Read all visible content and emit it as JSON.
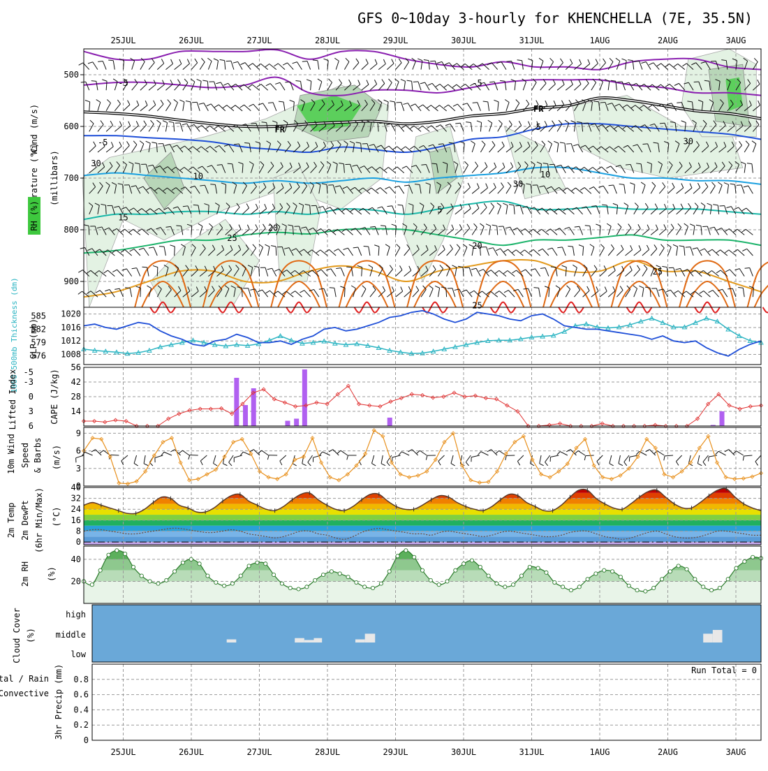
{
  "title": "GFS 0~10day 3-hourly for KHENCHELLA (7E, 35.5N)",
  "dates": [
    "25JUL",
    "26JUL",
    "27JUL",
    "28JUL",
    "29JUL",
    "30JUL",
    "31JUL",
    "1AUG",
    "2AUG",
    "3AUG"
  ],
  "colors": {
    "purple": "#8a1fb0",
    "black": "#000000",
    "blue": "#1f4fd8",
    "lightblue": "#1aa0e0",
    "teal": "#18b7a8",
    "green": "#1bb36a",
    "orange": "#e39a1c",
    "darkorange": "#e06a14",
    "red": "#e02020",
    "rhgreen": "#5ccf5c",
    "cyan": "#2ab4c2",
    "cape": "#b060f0",
    "wind": "#e8901c",
    "cloud": "#6aa8d8",
    "li": "#e03030"
  },
  "chart_data": [
    {
      "id": "upper_air",
      "type": "contour",
      "yaxis_label": "(millibars)",
      "legend": [
        "Wind (m/s)",
        "Temperature (°C)",
        "RH (%)"
      ],
      "ylim": [
        450,
        950
      ],
      "yticks": [
        500,
        600,
        700,
        800,
        900
      ],
      "contour_labels": [
        {
          "text": "-5",
          "day": 0.0,
          "p": 515,
          "color": "purple"
        },
        {
          "text": "-5",
          "day": 5.2,
          "p": 515,
          "color": "purple"
        },
        {
          "text": "FR",
          "day": 2.3,
          "p": 605,
          "color": "black"
        },
        {
          "text": "FR",
          "day": 6.1,
          "p": 565,
          "color": "black"
        },
        {
          "text": "-5",
          "day": -0.3,
          "p": 630,
          "color": "blue"
        },
        {
          "text": "5",
          "day": 6.1,
          "p": 600,
          "color": "blue"
        },
        {
          "text": "30",
          "day": -0.4,
          "p": 670,
          "color": "gray"
        },
        {
          "text": "30",
          "day": 8.3,
          "p": 628,
          "color": "gray"
        },
        {
          "text": "30",
          "day": 5.8,
          "p": 710,
          "color": "gray"
        },
        {
          "text": "10",
          "day": 1.1,
          "p": 695,
          "color": "lightblue"
        },
        {
          "text": "10",
          "day": 6.2,
          "p": 692,
          "color": "lightblue"
        },
        {
          "text": "15",
          "day": 0.0,
          "p": 775,
          "color": "teal"
        },
        {
          "text": "5",
          "day": 4.65,
          "p": 760,
          "color": "teal"
        },
        {
          "text": "20",
          "day": 2.2,
          "p": 795,
          "color": "green"
        },
        {
          "text": "20",
          "day": 5.2,
          "p": 830,
          "color": "green"
        },
        {
          "text": "25",
          "day": 1.6,
          "p": 815,
          "color": "orange"
        },
        {
          "text": "25",
          "day": 7.85,
          "p": 880,
          "color": "orange"
        },
        {
          "text": "25",
          "day": 5.2,
          "p": 945,
          "color": "orange"
        }
      ],
      "isotherms": [
        {
          "name": "T -10",
          "color": "purple",
          "p": [
            455,
            470,
            470,
            455,
            455,
            455,
            452,
            470,
            455,
            455,
            470,
            480,
            485,
            475,
            485,
            485,
            490,
            475,
            470,
            470,
            485,
            490
          ]
        },
        {
          "name": "T -5",
          "color": "purple",
          "p": [
            520,
            515,
            515,
            520,
            525,
            520,
            505,
            535,
            540,
            530,
            530,
            535,
            525,
            515,
            510,
            510,
            510,
            520,
            525,
            535,
            535,
            540
          ]
        },
        {
          "name": "T 0 (FR)",
          "color": "black",
          "p": [
            572,
            575,
            580,
            588,
            595,
            600,
            600,
            595,
            592,
            590,
            595,
            590,
            580,
            575,
            565,
            560,
            545,
            550,
            560,
            570,
            575,
            585
          ]
        },
        {
          "name": "T 5",
          "color": "blue",
          "p": [
            618,
            618,
            622,
            625,
            630,
            640,
            645,
            650,
            640,
            645,
            650,
            640,
            625,
            620,
            605,
            595,
            595,
            600,
            605,
            610,
            615,
            625
          ]
        },
        {
          "name": "T 10",
          "color": "lightblue",
          "p": [
            695,
            690,
            695,
            700,
            705,
            710,
            705,
            710,
            705,
            700,
            708,
            700,
            695,
            690,
            680,
            680,
            690,
            700,
            700,
            705,
            705,
            712
          ]
        },
        {
          "name": "T 15",
          "color": "teal",
          "p": [
            780,
            770,
            770,
            765,
            765,
            770,
            765,
            770,
            760,
            762,
            770,
            760,
            750,
            745,
            760,
            760,
            755,
            760,
            760,
            760,
            765,
            770
          ]
        },
        {
          "name": "T 20",
          "color": "green",
          "p": [
            845,
            840,
            830,
            820,
            820,
            810,
            805,
            808,
            800,
            798,
            800,
            810,
            820,
            830,
            820,
            820,
            815,
            810,
            820,
            820,
            820,
            830
          ]
        },
        {
          "name": "T 25",
          "color": "orange",
          "p": [
            930,
            920,
            900,
            880,
            880,
            900,
            900,
            880,
            870,
            880,
            900,
            880,
            870,
            860,
            860,
            880,
            880,
            860,
            880,
            880,
            900,
            920
          ]
        }
      ]
    },
    {
      "id": "thickness_slp",
      "type": "line",
      "series": [
        {
          "name": "1000-500mb Thickness (dm)",
          "color": "cyan",
          "ylim": [
            574,
            587
          ],
          "yticks": [
            576,
            579,
            582,
            585
          ],
          "values": [
            577.5,
            577.2,
            577.0,
            576.8,
            576.5,
            576.7,
            577.2,
            578.0,
            578.5,
            579.0,
            579.5,
            579.0,
            578.5,
            578.2,
            578.5,
            578.3,
            578.7,
            579.5,
            580.5,
            579.5,
            578.8,
            579.0,
            579.3,
            578.8,
            578.5,
            578.7,
            578.3,
            577.8,
            577.2,
            576.8,
            576.5,
            576.6,
            577.0,
            577.5,
            578.0,
            578.5,
            579.0,
            579.4,
            579.5,
            579.5,
            579.8,
            580.2,
            580.4,
            580.6,
            581.5,
            582.8,
            583.2,
            582.5,
            582.3,
            582.5,
            583.0,
            583.8,
            584.5,
            583.5,
            582.5,
            582.5,
            583.5,
            584.5,
            583.8,
            582.0,
            580.5,
            579.4,
            579.0
          ]
        },
        {
          "name": "SLP (mb)",
          "color": "blue",
          "ylim": [
            1005,
            1022
          ],
          "yticks": [
            1008,
            1012,
            1016,
            1020
          ],
          "values": [
            1016.5,
            1017.0,
            1016.0,
            1015.5,
            1016.5,
            1017.5,
            1017.0,
            1015.0,
            1013.5,
            1012.5,
            1011.0,
            1010.5,
            1012.0,
            1012.5,
            1014.0,
            1013.0,
            1011.5,
            1011.5,
            1012.0,
            1011.0,
            1012.5,
            1013.5,
            1015.5,
            1016.0,
            1015.0,
            1015.5,
            1016.5,
            1017.5,
            1019.0,
            1019.5,
            1020.5,
            1021.0,
            1020.0,
            1018.5,
            1017.5,
            1018.5,
            1020.5,
            1020.0,
            1019.5,
            1018.5,
            1018.0,
            1019.5,
            1020.0,
            1018.5,
            1016.5,
            1016.0,
            1015.5,
            1015.5,
            1015.0,
            1014.5,
            1014.0,
            1013.5,
            1012.5,
            1013.5,
            1012.0,
            1011.5,
            1012.0,
            1010.0,
            1008.5,
            1007.5,
            1009.5,
            1011.0,
            1012.0
          ]
        }
      ]
    },
    {
      "id": "li_cape",
      "type": "line+bar",
      "series": [
        {
          "name": "Lifted Index",
          "color": "li",
          "ylim": [
            6,
            -6
          ],
          "yticks": [
            -5,
            -3,
            0,
            3,
            6
          ],
          "values": [
            5.0,
            5.0,
            5.2,
            4.8,
            5.0,
            6,
            6,
            6,
            4.5,
            3.5,
            2.8,
            2.5,
            2.5,
            2.4,
            3.5,
            1.5,
            -0.8,
            -1.5,
            0.5,
            1.2,
            2.0,
            1.8,
            1.2,
            1.5,
            -0.5,
            -2.2,
            1.5,
            1.8,
            2.0,
            1.0,
            0.3,
            -0.5,
            -0.3,
            0.2,
            0.0,
            -0.8,
            0.0,
            -0.2,
            0.3,
            0.5,
            1.8,
            3.0,
            6,
            6,
            5.8,
            5.5,
            6,
            6,
            6,
            5.5,
            6,
            6,
            6,
            6,
            5.8,
            6,
            6,
            6,
            4.5,
            1.5,
            -0.5,
            1.8,
            2.5,
            2.0,
            1.8
          ]
        },
        {
          "name": "CAPE (J/kg)",
          "color": "cape",
          "ylim": [
            0,
            56
          ],
          "yticks": [
            14,
            28,
            42,
            56
          ],
          "bars": [
            {
              "day": 1.66,
              "value": 46
            },
            {
              "day": 1.79,
              "value": 20
            },
            {
              "day": 1.91,
              "value": 36
            },
            {
              "day": 2.41,
              "value": 5
            },
            {
              "day": 2.54,
              "value": 7
            },
            {
              "day": 2.66,
              "value": 54
            },
            {
              "day": 3.91,
              "value": 8
            },
            {
              "day": 8.66,
              "value": 1
            },
            {
              "day": 8.79,
              "value": 14
            }
          ]
        }
      ],
      "reference_line": 0
    },
    {
      "id": "wind10m",
      "type": "line",
      "ylabel": "10m Wind Speed & Barbs (m/s)",
      "ylim": [
        0,
        10
      ],
      "yticks": [
        0,
        3,
        6,
        9
      ],
      "values": [
        6.0,
        8.2,
        8.0,
        5.0,
        0.5,
        0.4,
        0.8,
        2.5,
        5.2,
        7.5,
        8.2,
        4.0,
        1.0,
        1.2,
        2.0,
        2.8,
        5.0,
        7.5,
        8.0,
        5.5,
        2.5,
        1.5,
        1.2,
        2.0,
        4.5,
        5.0,
        8.2,
        4.0,
        1.5,
        1.0,
        2.0,
        3.5,
        5.5,
        9.5,
        8.5,
        4.0,
        2.0,
        1.5,
        1.8,
        2.5,
        4.5,
        7.5,
        9.0,
        3.5,
        1.0,
        0.6,
        0.7,
        2.5,
        5.5,
        7.5,
        8.5,
        4.5,
        2.0,
        1.5,
        2.5,
        3.8,
        6.5,
        8.0,
        3.5,
        1.5,
        1.2,
        1.8,
        3.0,
        5.0,
        8.0,
        6.5,
        2.0,
        1.5,
        2.5,
        4.0,
        6.5,
        8.5,
        4.0,
        1.5,
        1.2,
        1.3,
        1.6,
        2.2
      ]
    },
    {
      "id": "temp2m",
      "type": "area",
      "ylabel": "2m Temp / 2m DewPt (6hr Min/Max) (°C)",
      "ylim": [
        -2,
        40
      ],
      "yticks": [
        0,
        8,
        16,
        24,
        32,
        40
      ],
      "temperature": [
        27,
        29,
        27,
        25,
        23,
        21,
        21,
        24,
        29,
        33,
        32,
        27,
        25,
        22,
        22,
        25,
        30,
        34,
        35,
        30,
        27,
        24,
        23,
        26,
        31,
        35,
        36,
        31,
        27,
        24,
        23,
        26,
        31,
        35,
        35,
        30,
        26,
        24,
        24,
        27,
        31,
        34,
        33,
        29,
        26,
        24,
        23,
        26,
        31,
        35,
        34,
        29,
        26,
        23,
        23,
        27,
        33,
        38,
        38,
        32,
        28,
        25,
        24,
        28,
        33,
        37,
        38,
        33,
        28,
        25,
        25,
        29,
        34,
        38,
        39,
        33,
        28,
        25,
        23
      ],
      "dewpoint": [
        8,
        9,
        9,
        8,
        7,
        6,
        6,
        7,
        8,
        9,
        10,
        10,
        9,
        8,
        7,
        7,
        8,
        9,
        8,
        6,
        5,
        4,
        3,
        4,
        6,
        8,
        8,
        6,
        5,
        3,
        2,
        4,
        7,
        9,
        10,
        9,
        8,
        7,
        6,
        6,
        5,
        7,
        8,
        7,
        6,
        5,
        4,
        5,
        7,
        8,
        7,
        6,
        5,
        4,
        4,
        5,
        7,
        8,
        8,
        6,
        4,
        3,
        2,
        3,
        5,
        7,
        8,
        6,
        4,
        3,
        3,
        4,
        6,
        8,
        8,
        7,
        6,
        5,
        5
      ]
    },
    {
      "id": "rh2m",
      "type": "area",
      "ylabel": "2m RH (%)",
      "ylim": [
        0,
        52
      ],
      "yticks": [
        20,
        40
      ],
      "values": [
        20,
        17,
        30,
        44,
        48,
        45,
        33,
        25,
        20,
        18,
        21,
        29,
        37,
        40,
        36,
        25,
        19,
        16,
        18,
        25,
        34,
        37,
        36,
        26,
        18,
        14,
        13,
        15,
        21,
        26,
        29,
        27,
        24,
        19,
        15,
        14,
        18,
        29,
        43,
        48,
        42,
        30,
        21,
        17,
        20,
        30,
        36,
        39,
        33,
        25,
        18,
        15,
        17,
        25,
        33,
        32,
        28,
        19,
        15,
        12,
        15,
        22,
        27,
        30,
        29,
        24,
        16,
        12,
        11,
        14,
        22,
        29,
        34,
        31,
        22,
        15,
        12,
        14,
        22,
        32,
        38,
        42,
        41
      ]
    },
    {
      "id": "cloud",
      "type": "heatmap",
      "ylabel": "Cloud Cover (%)",
      "rows": [
        "high",
        "middle",
        "low"
      ],
      "clear_blocks": [
        {
          "row": "middle",
          "start": 1.52,
          "end": 1.66,
          "level": 0.25
        },
        {
          "row": "middle",
          "start": 2.52,
          "end": 2.66,
          "level": 0.35
        },
        {
          "row": "middle",
          "start": 2.66,
          "end": 2.8,
          "level": 0.2
        },
        {
          "row": "middle",
          "start": 2.8,
          "end": 2.92,
          "level": 0.35
        },
        {
          "row": "middle",
          "start": 3.41,
          "end": 3.55,
          "level": 0.25
        },
        {
          "row": "middle",
          "start": 3.55,
          "end": 3.7,
          "level": 0.7
        },
        {
          "row": "middle",
          "start": 8.52,
          "end": 8.66,
          "level": 0.7
        },
        {
          "row": "middle",
          "start": 8.66,
          "end": 8.8,
          "level": 1.0
        }
      ]
    },
    {
      "id": "precip",
      "type": "bar",
      "ylabel": "3hr Precip (mm)",
      "legend": [
        "Total / Rain",
        "Convective"
      ],
      "ylim": [
        0,
        1
      ],
      "yticks": [
        0,
        0.2,
        0.4,
        0.6,
        0.8
      ],
      "run_total": "Run Total = 0",
      "values": []
    }
  ],
  "labels": {
    "title": "GFS 0~10day 3-hourly for KHENCHELLA (7E, 35.5N)",
    "wind": "Wind (m/s)",
    "temperature": "Temperature (°C)",
    "millibars": "(millibars)",
    "rh_box": "RH (%)",
    "thickness": "1000-500mb Thickness (dm)",
    "slp": "SLP (mb)",
    "lifted_index": "Lifted Index",
    "cape": "CAPE (J/kg)",
    "wind10m_a": "10m Wind",
    "wind10m_b": "Speed",
    "wind10m_c": "& Barbs",
    "wind10m_unit": "(m/s)",
    "temp2m_a": "2m Temp",
    "temp2m_b": "2m DewPt",
    "temp2m_c": "(6hr Min/Max)",
    "temp2m_unit": "(°C)",
    "rh2m": "2m RH",
    "rh2m_unit": "(%)",
    "cloud": "Cloud Cover",
    "cloud_unit": "(%)",
    "precip_a": "Total / Rain",
    "precip_b": "Convective",
    "precip_c": "3hr Precip (mm)"
  }
}
